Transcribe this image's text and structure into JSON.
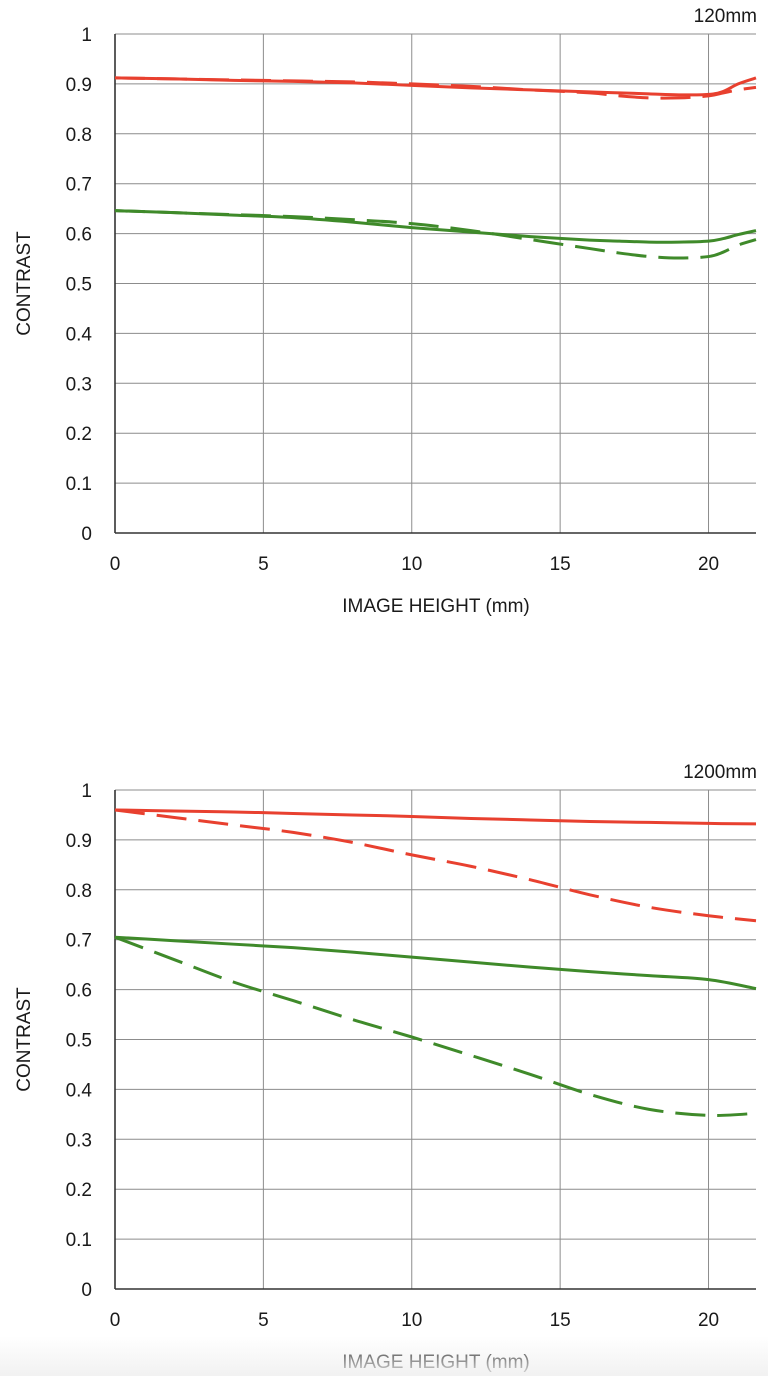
{
  "colors": {
    "red": "#e8402f",
    "green": "#3f8a2a",
    "grid": "#8c8c8c",
    "axis": "#333333"
  },
  "chart_data": [
    {
      "type": "line",
      "title": "120mm",
      "xlabel": "IMAGE HEIGHT (mm)",
      "ylabel": "CONTRAST",
      "xlim": [
        0,
        21.6
      ],
      "ylim": [
        0,
        1
      ],
      "xticks": [
        "0",
        "5",
        "10",
        "15",
        "20"
      ],
      "yticks": [
        "0",
        "0.1",
        "0.2",
        "0.3",
        "0.4",
        "0.5",
        "0.6",
        "0.7",
        "0.8",
        "0.9",
        "1"
      ],
      "grid": true,
      "series": [
        {
          "color": "red",
          "dash": false,
          "x": [
            0,
            2,
            4,
            6,
            8,
            10,
            12,
            14,
            16,
            17,
            18,
            19,
            20,
            20.5,
            21,
            21.6
          ],
          "y": [
            0.912,
            0.91,
            0.907,
            0.905,
            0.902,
            0.897,
            0.892,
            0.888,
            0.884,
            0.882,
            0.88,
            0.878,
            0.879,
            0.885,
            0.9,
            0.912
          ]
        },
        {
          "color": "red",
          "dash": true,
          "x": [
            0,
            2,
            4,
            6,
            8,
            10,
            12,
            14,
            16,
            17,
            18,
            19,
            20,
            20.5,
            21,
            21.6
          ],
          "y": [
            0.912,
            0.91,
            0.908,
            0.906,
            0.904,
            0.9,
            0.895,
            0.888,
            0.882,
            0.876,
            0.872,
            0.872,
            0.876,
            0.882,
            0.888,
            0.893
          ]
        },
        {
          "color": "green",
          "dash": false,
          "x": [
            0,
            2,
            4,
            6,
            8,
            10,
            12,
            14,
            16,
            17,
            18,
            19,
            20,
            20.5,
            21,
            21.6
          ],
          "y": [
            0.646,
            0.642,
            0.637,
            0.632,
            0.623,
            0.612,
            0.603,
            0.594,
            0.587,
            0.585,
            0.583,
            0.583,
            0.585,
            0.59,
            0.598,
            0.606
          ]
        },
        {
          "color": "green",
          "dash": true,
          "x": [
            0,
            2,
            4,
            6,
            8,
            10,
            12,
            14,
            16,
            17,
            18,
            19,
            20,
            20.5,
            21,
            21.6
          ],
          "y": [
            0.646,
            0.642,
            0.638,
            0.634,
            0.628,
            0.62,
            0.606,
            0.588,
            0.57,
            0.561,
            0.554,
            0.551,
            0.554,
            0.563,
            0.577,
            0.588
          ]
        }
      ]
    },
    {
      "type": "line",
      "title": "1200mm",
      "xlabel": "IMAGE HEIGHT (mm)",
      "ylabel": "CONTRAST",
      "xlim": [
        0,
        21.6
      ],
      "ylim": [
        0,
        1
      ],
      "xticks": [
        "0",
        "5",
        "10",
        "15",
        "20"
      ],
      "yticks": [
        "0",
        "0.1",
        "0.2",
        "0.3",
        "0.4",
        "0.5",
        "0.6",
        "0.7",
        "0.8",
        "0.9",
        "1"
      ],
      "grid": true,
      "series": [
        {
          "color": "red",
          "dash": false,
          "x": [
            0,
            2,
            4,
            6,
            8,
            10,
            12,
            14,
            16,
            18,
            20,
            21.6
          ],
          "y": [
            0.96,
            0.958,
            0.956,
            0.953,
            0.95,
            0.947,
            0.943,
            0.94,
            0.937,
            0.935,
            0.933,
            0.932
          ]
        },
        {
          "color": "red",
          "dash": true,
          "x": [
            0,
            2,
            4,
            6,
            8,
            10,
            12,
            14,
            16,
            18,
            20,
            21.6
          ],
          "y": [
            0.96,
            0.945,
            0.93,
            0.915,
            0.895,
            0.87,
            0.847,
            0.82,
            0.79,
            0.765,
            0.748,
            0.738
          ]
        },
        {
          "color": "green",
          "dash": false,
          "x": [
            0,
            2,
            4,
            6,
            8,
            10,
            12,
            14,
            16,
            18,
            20,
            21.6
          ],
          "y": [
            0.705,
            0.698,
            0.691,
            0.684,
            0.675,
            0.665,
            0.655,
            0.645,
            0.636,
            0.628,
            0.62,
            0.602
          ]
        },
        {
          "color": "green",
          "dash": true,
          "x": [
            0,
            2,
            4,
            6,
            8,
            10,
            12,
            14,
            16,
            18,
            20,
            21.6
          ],
          "y": [
            0.705,
            0.66,
            0.615,
            0.578,
            0.54,
            0.505,
            0.468,
            0.43,
            0.39,
            0.36,
            0.348,
            0.352
          ]
        }
      ]
    }
  ]
}
